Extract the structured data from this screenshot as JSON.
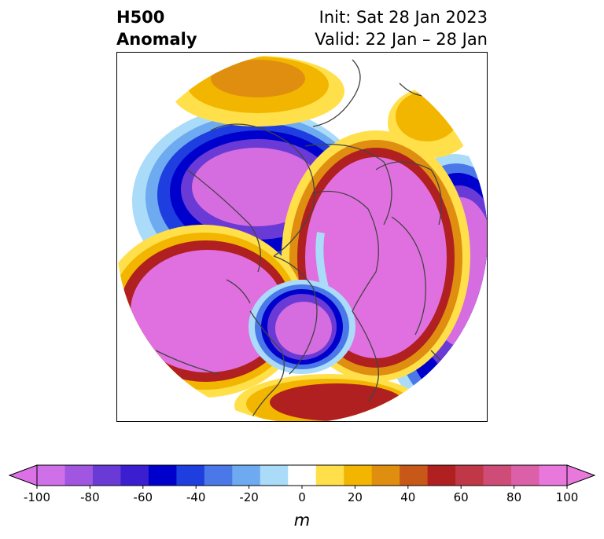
{
  "title": {
    "left_line1": "H500",
    "left_line2": "Anomaly",
    "right_line1": "Init: Sat 28 Jan 2023",
    "right_line2": "Valid: 22 Jan – 28 Jan"
  },
  "colorbar": {
    "unit": "m",
    "ticks": [
      "-100",
      "-80",
      "-60",
      "-40",
      "-20",
      "0",
      "20",
      "40",
      "60",
      "80",
      "100"
    ],
    "levels": [
      -100,
      -90,
      -80,
      -70,
      -60,
      -50,
      -40,
      -30,
      -20,
      -10,
      10,
      20,
      30,
      40,
      50,
      60,
      70,
      80,
      90,
      100
    ],
    "colors": [
      "#d070e8",
      "#a056e0",
      "#6a3ad6",
      "#3a1ed0",
      "#0000cc",
      "#1e3ee0",
      "#4a78e8",
      "#6eaaf0",
      "#aadcfa",
      "#ffffff",
      "#ffe04a",
      "#f2b600",
      "#e08e10",
      "#c85818",
      "#b02020",
      "#c03848",
      "#d04c78",
      "#dc60a8",
      "#e878dc"
    ],
    "under_color": "#dc70e6",
    "over_color": "#e878dc",
    "extend": "both"
  },
  "palette": {
    "neg_strong": "#d56ce0",
    "neg_purple": "#6a3ad6",
    "neg_blue": "#0000cc",
    "neg_mid": "#4a78e8",
    "neg_light": "#aadcfa",
    "pos_yellow": "#ffe04a",
    "pos_gold": "#f2b600",
    "pos_orange": "#e08e10",
    "pos_red": "#b02020",
    "pos_strong": "#e070e0",
    "coast": "#444444"
  }
}
